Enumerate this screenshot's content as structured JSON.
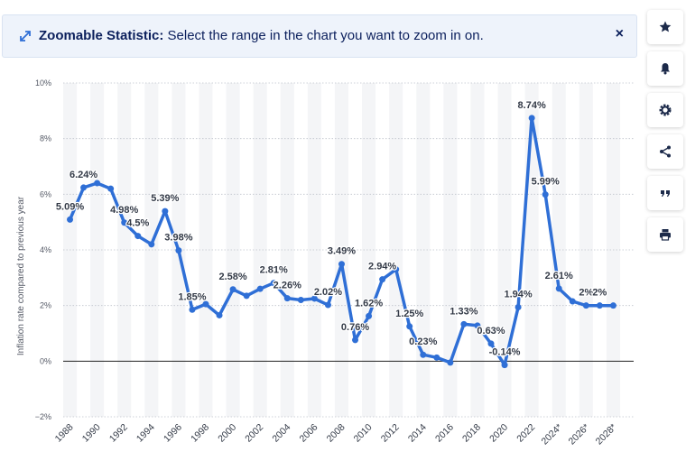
{
  "banner": {
    "title_bold": "Zoomable Statistic:",
    "title_rest": " Select the range in the chart you want to zoom in on.",
    "close": "×"
  },
  "sidebar": {
    "icons": [
      "star-icon",
      "bell-icon",
      "gear-icon",
      "share-icon",
      "quote-icon",
      "print-icon"
    ]
  },
  "chart_data": {
    "type": "line",
    "title": "",
    "xlabel": "",
    "ylabel": "Inflation rate compared to previous year",
    "ylim": [
      -2,
      10
    ],
    "yticks": [
      "−2%",
      "0%",
      "2%",
      "4%",
      "6%",
      "8%",
      "10%"
    ],
    "ytick_values": [
      -2,
      0,
      2,
      4,
      6,
      8,
      10
    ],
    "xlim": [
      1987.5,
      2029.5
    ],
    "xtick_labels": [
      "1988",
      "1990",
      "1992",
      "1994",
      "1996",
      "1998",
      "2000",
      "2002",
      "2004",
      "2006",
      "2008",
      "2010",
      "2012",
      "2014",
      "2016",
      "2018",
      "2020",
      "2022",
      "2024*",
      "2026*",
      "2028*"
    ],
    "xtick_values": [
      1988,
      1990,
      1992,
      1994,
      1996,
      1998,
      2000,
      2002,
      2004,
      2006,
      2008,
      2010,
      2012,
      2014,
      2016,
      2018,
      2020,
      2022,
      2024,
      2026,
      2028
    ],
    "color": "#2f6fd6",
    "grid": true,
    "series": [
      {
        "name": "Inflation rate",
        "x": [
          1988,
          1989,
          1990,
          1991,
          1992,
          1993,
          1994,
          1995,
          1996,
          1997,
          1998,
          1999,
          2000,
          2001,
          2002,
          2003,
          2004,
          2005,
          2006,
          2007,
          2008,
          2009,
          2010,
          2011,
          2012,
          2013,
          2014,
          2015,
          2016,
          2017,
          2018,
          2019,
          2020,
          2021,
          2022,
          2023,
          2024,
          2025,
          2026,
          2027,
          2028
        ],
        "values": [
          5.09,
          6.24,
          6.4,
          6.2,
          4.98,
          4.5,
          4.2,
          5.39,
          3.98,
          1.85,
          2.05,
          1.65,
          2.58,
          2.35,
          2.6,
          2.81,
          2.26,
          2.2,
          2.25,
          2.02,
          3.49,
          0.76,
          1.62,
          2.94,
          3.3,
          1.25,
          0.23,
          0.13,
          -0.05,
          1.33,
          1.28,
          0.63,
          -0.14,
          1.94,
          8.74,
          5.99,
          2.61,
          2.15,
          2.0,
          2.0,
          2.0
        ]
      }
    ],
    "data_labels": [
      {
        "x": 1988,
        "text": "5.09%"
      },
      {
        "x": 1989,
        "text": "6.24%"
      },
      {
        "x": 1992,
        "text": "4.98%"
      },
      {
        "x": 1993,
        "text": "4.5%"
      },
      {
        "x": 1995,
        "text": "5.39%"
      },
      {
        "x": 1996,
        "text": "3.98%"
      },
      {
        "x": 1997,
        "text": "1.85%"
      },
      {
        "x": 2000,
        "text": "2.58%"
      },
      {
        "x": 2003,
        "text": "2.81%"
      },
      {
        "x": 2004,
        "text": "2.26%"
      },
      {
        "x": 2007,
        "text": "2.02%"
      },
      {
        "x": 2008,
        "text": "3.49%"
      },
      {
        "x": 2009,
        "text": "0.76%"
      },
      {
        "x": 2010,
        "text": "1.62%"
      },
      {
        "x": 2011,
        "text": "2.94%"
      },
      {
        "x": 2013,
        "text": "1.25%"
      },
      {
        "x": 2014,
        "text": "0.23%"
      },
      {
        "x": 2017,
        "text": "1.33%"
      },
      {
        "x": 2019,
        "text": "0.63%"
      },
      {
        "x": 2020,
        "text": "-0.14%"
      },
      {
        "x": 2021,
        "text": "1.94%"
      },
      {
        "x": 2022,
        "text": "8.74%"
      },
      {
        "x": 2023,
        "text": "5.99%"
      },
      {
        "x": 2024,
        "text": "2.61%"
      },
      {
        "x": 2026,
        "text": "2%"
      },
      {
        "x": 2027,
        "text": "2%"
      }
    ]
  }
}
